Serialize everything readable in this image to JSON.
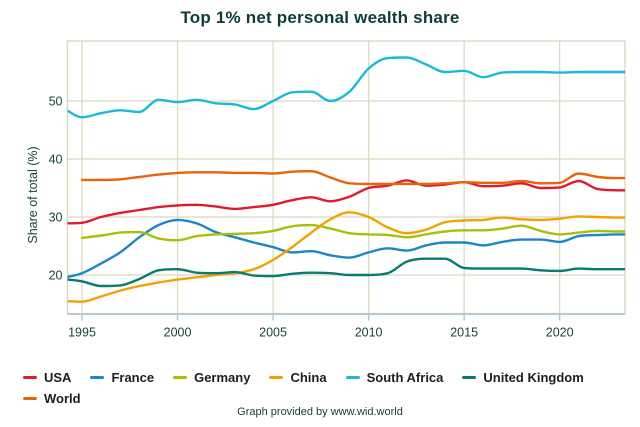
{
  "chart_data": {
    "type": "line",
    "title": "Top 1% net personal wealth share",
    "xlabel": "",
    "ylabel": "Share of total (%)",
    "x_ticks": [
      1995,
      2000,
      2005,
      2010,
      2015,
      2020
    ],
    "y_ticks": [
      20,
      30,
      40,
      50
    ],
    "xlim": [
      1994.24,
      2023.42
    ],
    "ylim": [
      13.36,
      60.34
    ],
    "grid": true,
    "legend_position": "bottom",
    "x": [
      1994,
      1995,
      1996,
      1997,
      1998,
      1999,
      2000,
      2001,
      2002,
      2003,
      2004,
      2005,
      2006,
      2007,
      2008,
      2009,
      2010,
      2011,
      2012,
      2013,
      2014,
      2015,
      2016,
      2017,
      2018,
      2019,
      2020,
      2021,
      2022,
      2023
    ],
    "series": [
      {
        "name": "USA",
        "color": "#e11b2f",
        "values": [
          28.9,
          29.0,
          30.0,
          30.7,
          31.2,
          31.7,
          32.0,
          32.1,
          31.8,
          31.4,
          31.7,
          32.1,
          32.9,
          33.4,
          32.7,
          33.5,
          35.0,
          35.4,
          36.3,
          35.4,
          35.6,
          36.0,
          35.3,
          35.4,
          35.8,
          35.0,
          35.1,
          36.2,
          34.8,
          34.6
        ]
      },
      {
        "name": "France",
        "color": "#1d87c6",
        "values": [
          19.5,
          20.3,
          22.0,
          23.9,
          26.5,
          28.6,
          29.5,
          28.9,
          27.4,
          26.5,
          25.6,
          24.8,
          23.9,
          24.1,
          23.4,
          23.0,
          23.9,
          24.6,
          24.2,
          25.1,
          25.6,
          25.6,
          25.1,
          25.7,
          26.1,
          26.1,
          25.7,
          26.7,
          26.9,
          27.0
        ]
      },
      {
        "name": "Germany",
        "color": "#a6c00d",
        "values": [
          null,
          26.4,
          26.8,
          27.3,
          27.4,
          26.3,
          26.0,
          26.7,
          27.0,
          27.1,
          27.2,
          27.6,
          28.4,
          28.6,
          28.0,
          27.2,
          27.0,
          26.9,
          26.5,
          27.0,
          27.5,
          27.7,
          27.7,
          28.0,
          28.5,
          27.6,
          27.0,
          27.3,
          27.6,
          27.5
        ]
      },
      {
        "name": "China",
        "color": "#f0a202",
        "values": [
          15.5,
          15.4,
          16.3,
          17.3,
          18.1,
          18.7,
          19.2,
          19.6,
          20.0,
          20.3,
          21.0,
          22.6,
          24.8,
          27.3,
          29.6,
          30.8,
          30.0,
          28.2,
          27.2,
          27.8,
          29.1,
          29.4,
          29.5,
          29.9,
          29.6,
          29.5,
          29.7,
          30.1,
          30.0,
          29.9
        ]
      },
      {
        "name": "South Africa",
        "color": "#1db9d9",
        "values": [
          48.8,
          47.2,
          47.9,
          48.4,
          48.1,
          50.2,
          49.8,
          50.2,
          49.6,
          49.4,
          48.6,
          50.0,
          51.5,
          51.6,
          50.0,
          51.6,
          55.6,
          57.4,
          57.5,
          56.3,
          55.0,
          55.2,
          54.1,
          54.9,
          55.0,
          55.0,
          54.9,
          55.0,
          55.0,
          55.0
        ]
      },
      {
        "name": "United Kingdom",
        "color": "#097c70",
        "values": [
          19.3,
          18.9,
          18.1,
          18.2,
          19.3,
          20.8,
          21.0,
          20.4,
          20.3,
          20.5,
          19.9,
          19.8,
          20.2,
          20.4,
          20.3,
          20.0,
          20.0,
          20.3,
          22.3,
          22.8,
          22.8,
          21.2,
          21.1,
          21.1,
          21.1,
          20.8,
          20.7,
          21.1,
          21.0,
          21.0
        ]
      },
      {
        "name": "World",
        "color": "#ea6209",
        "values": [
          null,
          36.4,
          36.4,
          36.5,
          36.9,
          37.3,
          37.6,
          37.7,
          37.7,
          37.6,
          37.6,
          37.5,
          37.8,
          37.9,
          36.8,
          35.8,
          35.7,
          35.7,
          35.7,
          35.7,
          35.8,
          36.0,
          35.9,
          35.9,
          36.2,
          35.8,
          35.9,
          37.5,
          36.9,
          36.7
        ]
      }
    ]
  },
  "footer": {
    "text": "Graph provided by www.wid.world"
  },
  "ui_colors": {
    "title_text": "#0d3d39",
    "tick_text": "#17453f",
    "legend_text": "#1d1d1b",
    "grid": "#dcd8c1",
    "axis_line": "#a6c5da",
    "background": "#ffffff"
  }
}
